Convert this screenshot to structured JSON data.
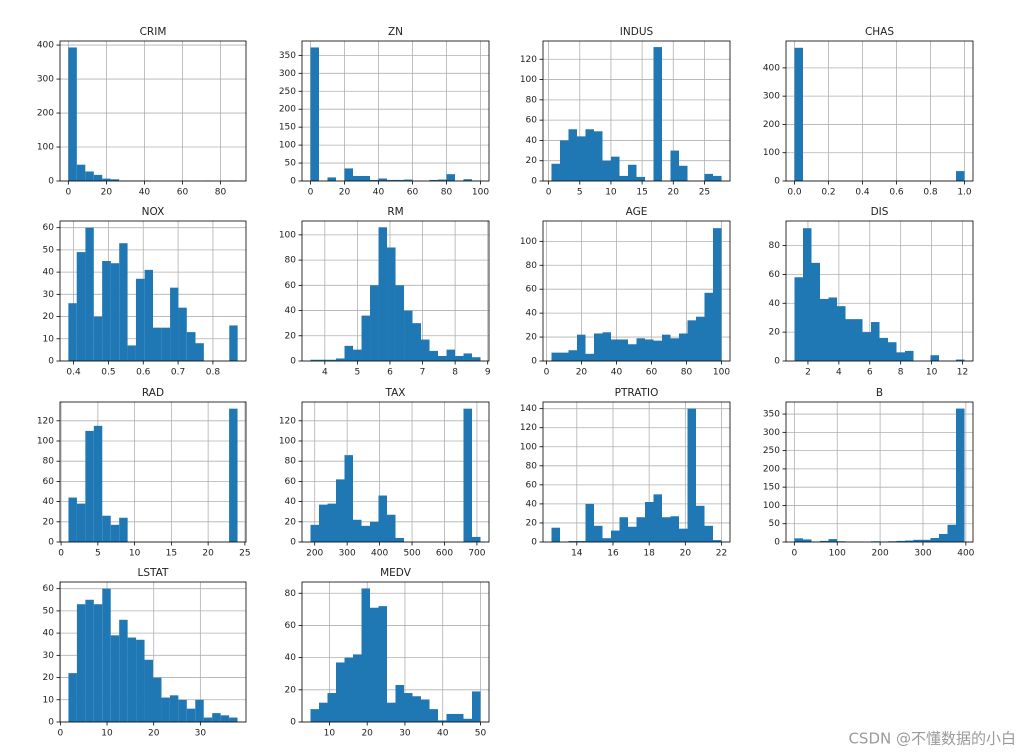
{
  "chart_data": [
    {
      "type": "histogram",
      "title": "CRIM",
      "color": "#1f77b4",
      "grid": true,
      "bins": [
        0.006,
        4.455,
        8.903,
        13.352,
        17.801,
        22.25,
        26.698,
        31.147,
        35.596,
        40.044,
        44.493,
        48.942,
        53.391,
        57.839,
        62.288,
        66.737,
        71.185,
        75.634,
        80.083,
        84.531,
        88.98
      ],
      "values": [
        393,
        48,
        28,
        18,
        7,
        5,
        1,
        1,
        1,
        1,
        0,
        0,
        0,
        1,
        0,
        0,
        1,
        0,
        0,
        1
      ],
      "xlim": [
        -4.4,
        93.4
      ],
      "xticks": [
        0,
        20,
        40,
        60,
        80
      ],
      "ylim": [
        0,
        412
      ],
      "yticks": [
        0,
        100,
        200,
        300,
        400
      ]
    },
    {
      "type": "histogram",
      "title": "ZN",
      "color": "#1f77b4",
      "grid": true,
      "bins": [
        0,
        5,
        10,
        15,
        20,
        25,
        30,
        35,
        40,
        45,
        50,
        55,
        60,
        65,
        70,
        75,
        80,
        85,
        90,
        95,
        100
      ],
      "values": [
        372,
        0,
        10,
        0,
        35,
        14,
        14,
        3,
        7,
        3,
        3,
        4,
        0,
        0,
        3,
        4,
        19,
        1,
        5,
        1
      ],
      "xlim": [
        -5,
        105
      ],
      "xticks": [
        0,
        20,
        40,
        60,
        80,
        100
      ],
      "ylim": [
        0,
        390
      ],
      "yticks": [
        0,
        50,
        100,
        150,
        200,
        250,
        300,
        350
      ]
    },
    {
      "type": "histogram",
      "title": "INDUS",
      "color": "#1f77b4",
      "grid": true,
      "bins": [
        0.46,
        1.824,
        3.188,
        4.552,
        5.916,
        7.28,
        8.644,
        10.008,
        11.372,
        12.736,
        14.1,
        15.464,
        16.828,
        18.192,
        19.556,
        20.92,
        22.284,
        23.648,
        25.012,
        26.376,
        27.74
      ],
      "values": [
        17,
        40,
        51,
        44,
        51,
        49,
        20,
        24,
        5,
        16,
        4,
        0,
        132,
        0,
        30,
        15,
        0,
        0,
        7,
        5
      ],
      "xlim": [
        -0.9,
        29.1
      ],
      "xticks": [
        0,
        5,
        10,
        15,
        20,
        25
      ],
      "ylim": [
        0,
        138
      ],
      "yticks": [
        0,
        20,
        40,
        60,
        80,
        100,
        120
      ]
    },
    {
      "type": "histogram",
      "title": "CHAS",
      "color": "#1f77b4",
      "grid": true,
      "bins": [
        0,
        0.05,
        0.1,
        0.15,
        0.2,
        0.25,
        0.3,
        0.35,
        0.4,
        0.45,
        0.5,
        0.55,
        0.6,
        0.65,
        0.7,
        0.75,
        0.8,
        0.85,
        0.9,
        0.95,
        1
      ],
      "values": [
        471,
        0,
        0,
        0,
        0,
        0,
        0,
        0,
        0,
        0,
        0,
        0,
        0,
        0,
        0,
        0,
        0,
        0,
        0,
        35
      ],
      "xlim": [
        -0.05,
        1.05
      ],
      "xticks": [
        {
          "value": 0,
          "label": "0.0"
        },
        0.2,
        0.4,
        0.6,
        0.8,
        {
          "value": 1,
          "label": "1.0"
        }
      ],
      "ylim": [
        0,
        495
      ],
      "yticks": [
        0,
        100,
        200,
        300,
        400
      ]
    },
    {
      "type": "histogram",
      "title": "NOX",
      "color": "#1f77b4",
      "grid": true,
      "bins": [
        0.385,
        0.409,
        0.434,
        0.458,
        0.482,
        0.507,
        0.531,
        0.555,
        0.579,
        0.604,
        0.628,
        0.652,
        0.677,
        0.701,
        0.725,
        0.75,
        0.774,
        0.798,
        0.822,
        0.847,
        0.871
      ],
      "values": [
        26,
        49,
        60,
        20,
        45,
        44,
        53,
        7,
        37,
        41,
        15,
        15,
        33,
        24,
        13,
        8,
        0,
        0,
        0,
        16
      ],
      "xlim": [
        0.361,
        0.895
      ],
      "xticks": [
        0.4,
        0.5,
        0.6,
        0.7,
        0.8
      ],
      "ylim": [
        0,
        63
      ],
      "yticks": [
        0,
        10,
        20,
        30,
        40,
        50,
        60
      ]
    },
    {
      "type": "histogram",
      "title": "RM",
      "color": "#1f77b4",
      "grid": true,
      "bins": [
        3.561,
        3.822,
        4.083,
        4.344,
        4.605,
        4.866,
        5.127,
        5.388,
        5.649,
        5.91,
        6.171,
        6.432,
        6.692,
        6.953,
        7.214,
        7.475,
        7.736,
        7.997,
        8.258,
        8.519,
        8.78
      ],
      "values": [
        1,
        1,
        1,
        2,
        12,
        9,
        36,
        60,
        106,
        90,
        60,
        40,
        30,
        17,
        8,
        4,
        9,
        4,
        6,
        3
      ],
      "xlim": [
        3.3,
        9.04
      ],
      "xticks": [
        4,
        5,
        6,
        7,
        8,
        9
      ],
      "ylim": [
        0,
        111
      ],
      "yticks": [
        0,
        20,
        40,
        60,
        80,
        100
      ]
    },
    {
      "type": "histogram",
      "title": "AGE",
      "color": "#1f77b4",
      "grid": true,
      "bins": [
        2.9,
        7.755,
        12.61,
        17.465,
        22.32,
        27.175,
        32.03,
        36.885,
        41.74,
        46.595,
        51.45,
        56.305,
        61.16,
        66.015,
        70.87,
        75.725,
        80.58,
        85.435,
        90.29,
        95.145,
        100
      ],
      "values": [
        7,
        7,
        9,
        22,
        6,
        23,
        24,
        18,
        18,
        14,
        19,
        18,
        17,
        22,
        19,
        23,
        34,
        37,
        57,
        111
      ],
      "xlim": [
        -1.96,
        104.86
      ],
      "xticks": [
        0,
        20,
        40,
        60,
        80,
        100
      ],
      "ylim": [
        0,
        117
      ],
      "yticks": [
        0,
        20,
        40,
        60,
        80,
        100
      ]
    },
    {
      "type": "histogram",
      "title": "DIS",
      "color": "#1f77b4",
      "grid": true,
      "bins": [
        1.13,
        1.68,
        2.23,
        2.78,
        3.33,
        3.88,
        4.43,
        4.98,
        5.53,
        6.08,
        6.63,
        7.18,
        7.73,
        8.28,
        8.83,
        9.38,
        9.93,
        10.48,
        11.03,
        11.58,
        12.13
      ],
      "values": [
        58,
        92,
        68,
        43,
        44,
        38,
        29,
        29,
        20,
        27,
        16,
        13,
        6,
        7,
        0,
        0,
        4,
        0,
        0,
        1
      ],
      "xlim": [
        0.58,
        12.68
      ],
      "xticks": [
        2,
        4,
        6,
        8,
        10,
        12
      ],
      "ylim": [
        0,
        97
      ],
      "yticks": [
        0,
        20,
        40,
        60,
        80
      ]
    },
    {
      "type": "histogram",
      "title": "RAD",
      "color": "#1f77b4",
      "grid": true,
      "bins": [
        1,
        2.15,
        3.3,
        4.45,
        5.6,
        6.75,
        7.9,
        9.05,
        10.2,
        11.35,
        12.5,
        13.65,
        14.8,
        15.95,
        17.1,
        18.25,
        19.4,
        20.55,
        21.7,
        22.85,
        24
      ],
      "values": [
        44,
        38,
        110,
        115,
        26,
        17,
        24,
        0,
        0,
        0,
        0,
        0,
        0,
        0,
        0,
        0,
        0,
        0,
        0,
        132
      ],
      "xlim": [
        -0.15,
        25.15
      ],
      "xticks": [
        0,
        5,
        10,
        15,
        20,
        25
      ],
      "ylim": [
        0,
        138.6
      ],
      "yticks": [
        0,
        20,
        40,
        60,
        80,
        100,
        120
      ]
    },
    {
      "type": "histogram",
      "title": "TAX",
      "color": "#1f77b4",
      "grid": true,
      "bins": [
        187,
        213.2,
        239.4,
        265.6,
        291.8,
        318,
        344.2,
        370.4,
        396.6,
        422.8,
        449,
        475.2,
        501.4,
        527.6,
        553.8,
        580,
        606.2,
        632.4,
        658.6,
        684.8,
        711
      ],
      "values": [
        17,
        37,
        38,
        62,
        86,
        22,
        16,
        20,
        46,
        27,
        4,
        0,
        0,
        0,
        0,
        0,
        0,
        0,
        132,
        5
      ],
      "xlim": [
        160.8,
        737.2
      ],
      "xticks": [
        200,
        300,
        400,
        500,
        600,
        700
      ],
      "ylim": [
        0,
        138.6
      ],
      "yticks": [
        0,
        20,
        40,
        60,
        80,
        100,
        120
      ]
    },
    {
      "type": "histogram",
      "title": "PTRATIO",
      "color": "#1f77b4",
      "grid": true,
      "bins": [
        12.6,
        13.07,
        13.54,
        14.01,
        14.48,
        14.95,
        15.42,
        15.89,
        16.36,
        16.83,
        17.3,
        17.77,
        18.24,
        18.71,
        19.18,
        19.65,
        20.12,
        20.59,
        21.06,
        21.53,
        22
      ],
      "values": [
        15,
        0,
        1,
        1,
        40,
        17,
        4,
        12,
        26,
        16,
        26,
        42,
        50,
        26,
        27,
        14,
        140,
        38,
        17,
        2
      ],
      "xlim": [
        12.13,
        22.47
      ],
      "xticks": [
        14,
        16,
        18,
        20,
        22
      ],
      "ylim": [
        0,
        147
      ],
      "yticks": [
        0,
        20,
        40,
        60,
        80,
        100,
        120,
        140
      ]
    },
    {
      "type": "histogram",
      "title": "B",
      "color": "#1f77b4",
      "grid": true,
      "bins": [
        0.32,
        20.149,
        39.978,
        59.807,
        79.636,
        99.465,
        119.294,
        139.123,
        158.952,
        178.781,
        198.61,
        218.439,
        238.268,
        258.097,
        277.926,
        297.755,
        317.584,
        337.413,
        357.242,
        377.071,
        396.9
      ],
      "values": [
        10,
        7,
        1,
        3,
        8,
        2,
        1,
        1,
        0,
        2,
        1,
        2,
        3,
        4,
        6,
        6,
        11,
        22,
        47,
        365
      ],
      "xlim": [
        -19.5,
        416.7
      ],
      "xticks": [
        0,
        100,
        200,
        300,
        400
      ],
      "ylim": [
        0,
        383
      ],
      "yticks": [
        0,
        50,
        100,
        150,
        200,
        250,
        300,
        350
      ]
    },
    {
      "type": "histogram",
      "title": "LSTAT",
      "color": "#1f77b4",
      "grid": true,
      "bins": [
        1.73,
        3.542,
        5.354,
        7.166,
        8.978,
        10.79,
        12.602,
        14.414,
        16.226,
        18.038,
        19.85,
        21.662,
        23.474,
        25.286,
        27.098,
        28.91,
        30.722,
        32.534,
        34.346,
        36.158,
        37.97
      ],
      "values": [
        22,
        53,
        55,
        53,
        60,
        39,
        46,
        38,
        37,
        28,
        20,
        11,
        12,
        10,
        6,
        10,
        2,
        4,
        3,
        2
      ],
      "xlim": [
        -0.08,
        39.78
      ],
      "xticks": [
        0,
        10,
        20,
        30
      ],
      "ylim": [
        0,
        63
      ],
      "yticks": [
        0,
        10,
        20,
        30,
        40,
        50,
        60
      ]
    },
    {
      "type": "histogram",
      "title": "MEDV",
      "color": "#1f77b4",
      "grid": true,
      "bins": [
        5,
        7.25,
        9.5,
        11.75,
        14,
        16.25,
        18.5,
        20.75,
        23,
        25.25,
        27.5,
        29.75,
        32,
        34.25,
        36.5,
        38.75,
        41,
        43.25,
        45.5,
        47.75,
        50
      ],
      "values": [
        8,
        12,
        18,
        37,
        40,
        42,
        83,
        71,
        72,
        12,
        23,
        18,
        16,
        14,
        8,
        1,
        5,
        5,
        2,
        19
      ],
      "xlim": [
        2.75,
        52.25
      ],
      "xticks": [
        10,
        20,
        30,
        40,
        50
      ],
      "ylim": [
        0,
        87
      ],
      "yticks": [
        0,
        20,
        40,
        60,
        80
      ]
    }
  ],
  "watermark": "CSDN @不懂数据的小白"
}
